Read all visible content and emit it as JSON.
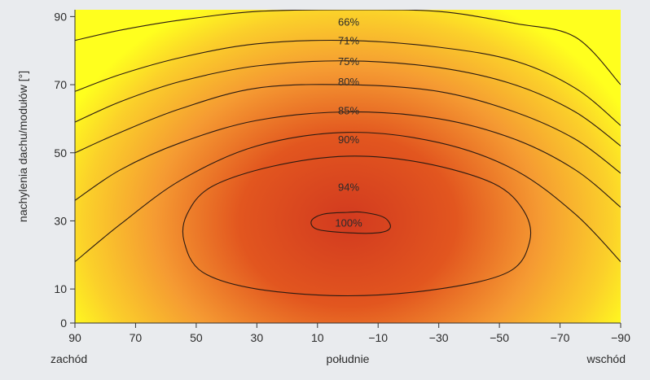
{
  "chart_data": {
    "type": "heatmap",
    "title": "",
    "xlabel": "",
    "ylabel": "nachylenia dachu/modułów [°]",
    "x_ticks": [
      90,
      70,
      50,
      30,
      10,
      -10,
      -30,
      -50,
      -70,
      -90
    ],
    "x_tick_labels": [
      "90",
      "70",
      "50",
      "30",
      "10",
      "−10",
      "−30",
      "−50",
      "−70",
      "−90"
    ],
    "y_ticks": [
      0,
      10,
      30,
      50,
      70,
      90
    ],
    "y_tick_labels": [
      "0",
      "10",
      "30",
      "50",
      "70",
      "90"
    ],
    "xlim": [
      90,
      -90
    ],
    "ylim": [
      0,
      92
    ],
    "x_direction_labels": [
      {
        "x": 90,
        "text": "zachód"
      },
      {
        "x": 0,
        "text": "południe"
      },
      {
        "x": -90,
        "text": "wschód"
      }
    ],
    "colormap": {
      "low": "#ffff1e",
      "mid": "#f59a32",
      "high": "#d23a1f"
    },
    "peak": {
      "azimuth": 0,
      "tilt": 30,
      "value": 100
    },
    "contour_labels": [
      {
        "x": 0,
        "y": 29.5,
        "text": "100%"
      },
      {
        "x": 0,
        "y": 40,
        "text": "94%"
      },
      {
        "x": 0,
        "y": 54,
        "text": "90%"
      },
      {
        "x": 0,
        "y": 62.5,
        "text": "85%"
      },
      {
        "x": 0,
        "y": 71,
        "text": "80%"
      },
      {
        "x": 0,
        "y": 77,
        "text": "75%"
      },
      {
        "x": 0,
        "y": 83,
        "text": "71%"
      },
      {
        "x": 0,
        "y": 88.5,
        "text": "66%"
      }
    ],
    "contours": [
      {
        "label": "100%",
        "closed": true,
        "points": [
          [
            0,
            32.5
          ],
          [
            8,
            32
          ],
          [
            12,
            30
          ],
          [
            10,
            27.5
          ],
          [
            0,
            26.5
          ],
          [
            -10,
            26.5
          ],
          [
            -14,
            28
          ],
          [
            -12,
            31
          ],
          [
            -5,
            32.5
          ]
        ]
      },
      {
        "label": "94%",
        "closed": true,
        "points": [
          [
            0,
            49
          ],
          [
            25,
            46
          ],
          [
            45,
            40
          ],
          [
            53,
            32
          ],
          [
            54,
            24
          ],
          [
            48,
            15
          ],
          [
            30,
            10
          ],
          [
            0,
            8
          ],
          [
            -30,
            10
          ],
          [
            -53,
            15
          ],
          [
            -60,
            24
          ],
          [
            -58,
            33
          ],
          [
            -48,
            41
          ],
          [
            -25,
            47
          ]
        ]
      },
      {
        "label": "90%",
        "closed": false,
        "points": [
          [
            90,
            18
          ],
          [
            75,
            29
          ],
          [
            55,
            42
          ],
          [
            30,
            52
          ],
          [
            0,
            56
          ],
          [
            -30,
            53
          ],
          [
            -55,
            45
          ],
          [
            -75,
            32
          ],
          [
            -90,
            18
          ]
        ]
      },
      {
        "label": "85%",
        "closed": false,
        "points": [
          [
            90,
            36
          ],
          [
            75,
            45
          ],
          [
            55,
            53
          ],
          [
            30,
            59.5
          ],
          [
            0,
            62
          ],
          [
            -30,
            60
          ],
          [
            -55,
            54
          ],
          [
            -75,
            45
          ],
          [
            -90,
            34
          ]
        ]
      },
      {
        "label": "80%",
        "closed": false,
        "points": [
          [
            90,
            50
          ],
          [
            75,
            56
          ],
          [
            55,
            63
          ],
          [
            30,
            69
          ],
          [
            0,
            70
          ],
          [
            -30,
            68
          ],
          [
            -55,
            62
          ],
          [
            -75,
            54
          ],
          [
            -90,
            44
          ]
        ]
      },
      {
        "label": "75%",
        "closed": false,
        "points": [
          [
            90,
            59
          ],
          [
            75,
            65
          ],
          [
            55,
            71
          ],
          [
            30,
            75.5
          ],
          [
            0,
            77
          ],
          [
            -30,
            75
          ],
          [
            -55,
            70
          ],
          [
            -75,
            62
          ],
          [
            -90,
            52
          ]
        ]
      },
      {
        "label": "71%",
        "closed": false,
        "points": [
          [
            90,
            68
          ],
          [
            75,
            73
          ],
          [
            55,
            78
          ],
          [
            30,
            82
          ],
          [
            0,
            83
          ],
          [
            -30,
            81
          ],
          [
            -55,
            77
          ],
          [
            -75,
            69
          ],
          [
            -90,
            58
          ]
        ]
      },
      {
        "label": "66%",
        "closed": false,
        "points": [
          [
            90,
            83
          ],
          [
            75,
            86
          ],
          [
            55,
            89
          ],
          [
            30,
            91.5
          ],
          [
            0,
            92
          ],
          [
            -30,
            91.5
          ],
          [
            -55,
            88
          ],
          [
            -75,
            84
          ],
          [
            -90,
            70
          ]
        ]
      }
    ]
  }
}
